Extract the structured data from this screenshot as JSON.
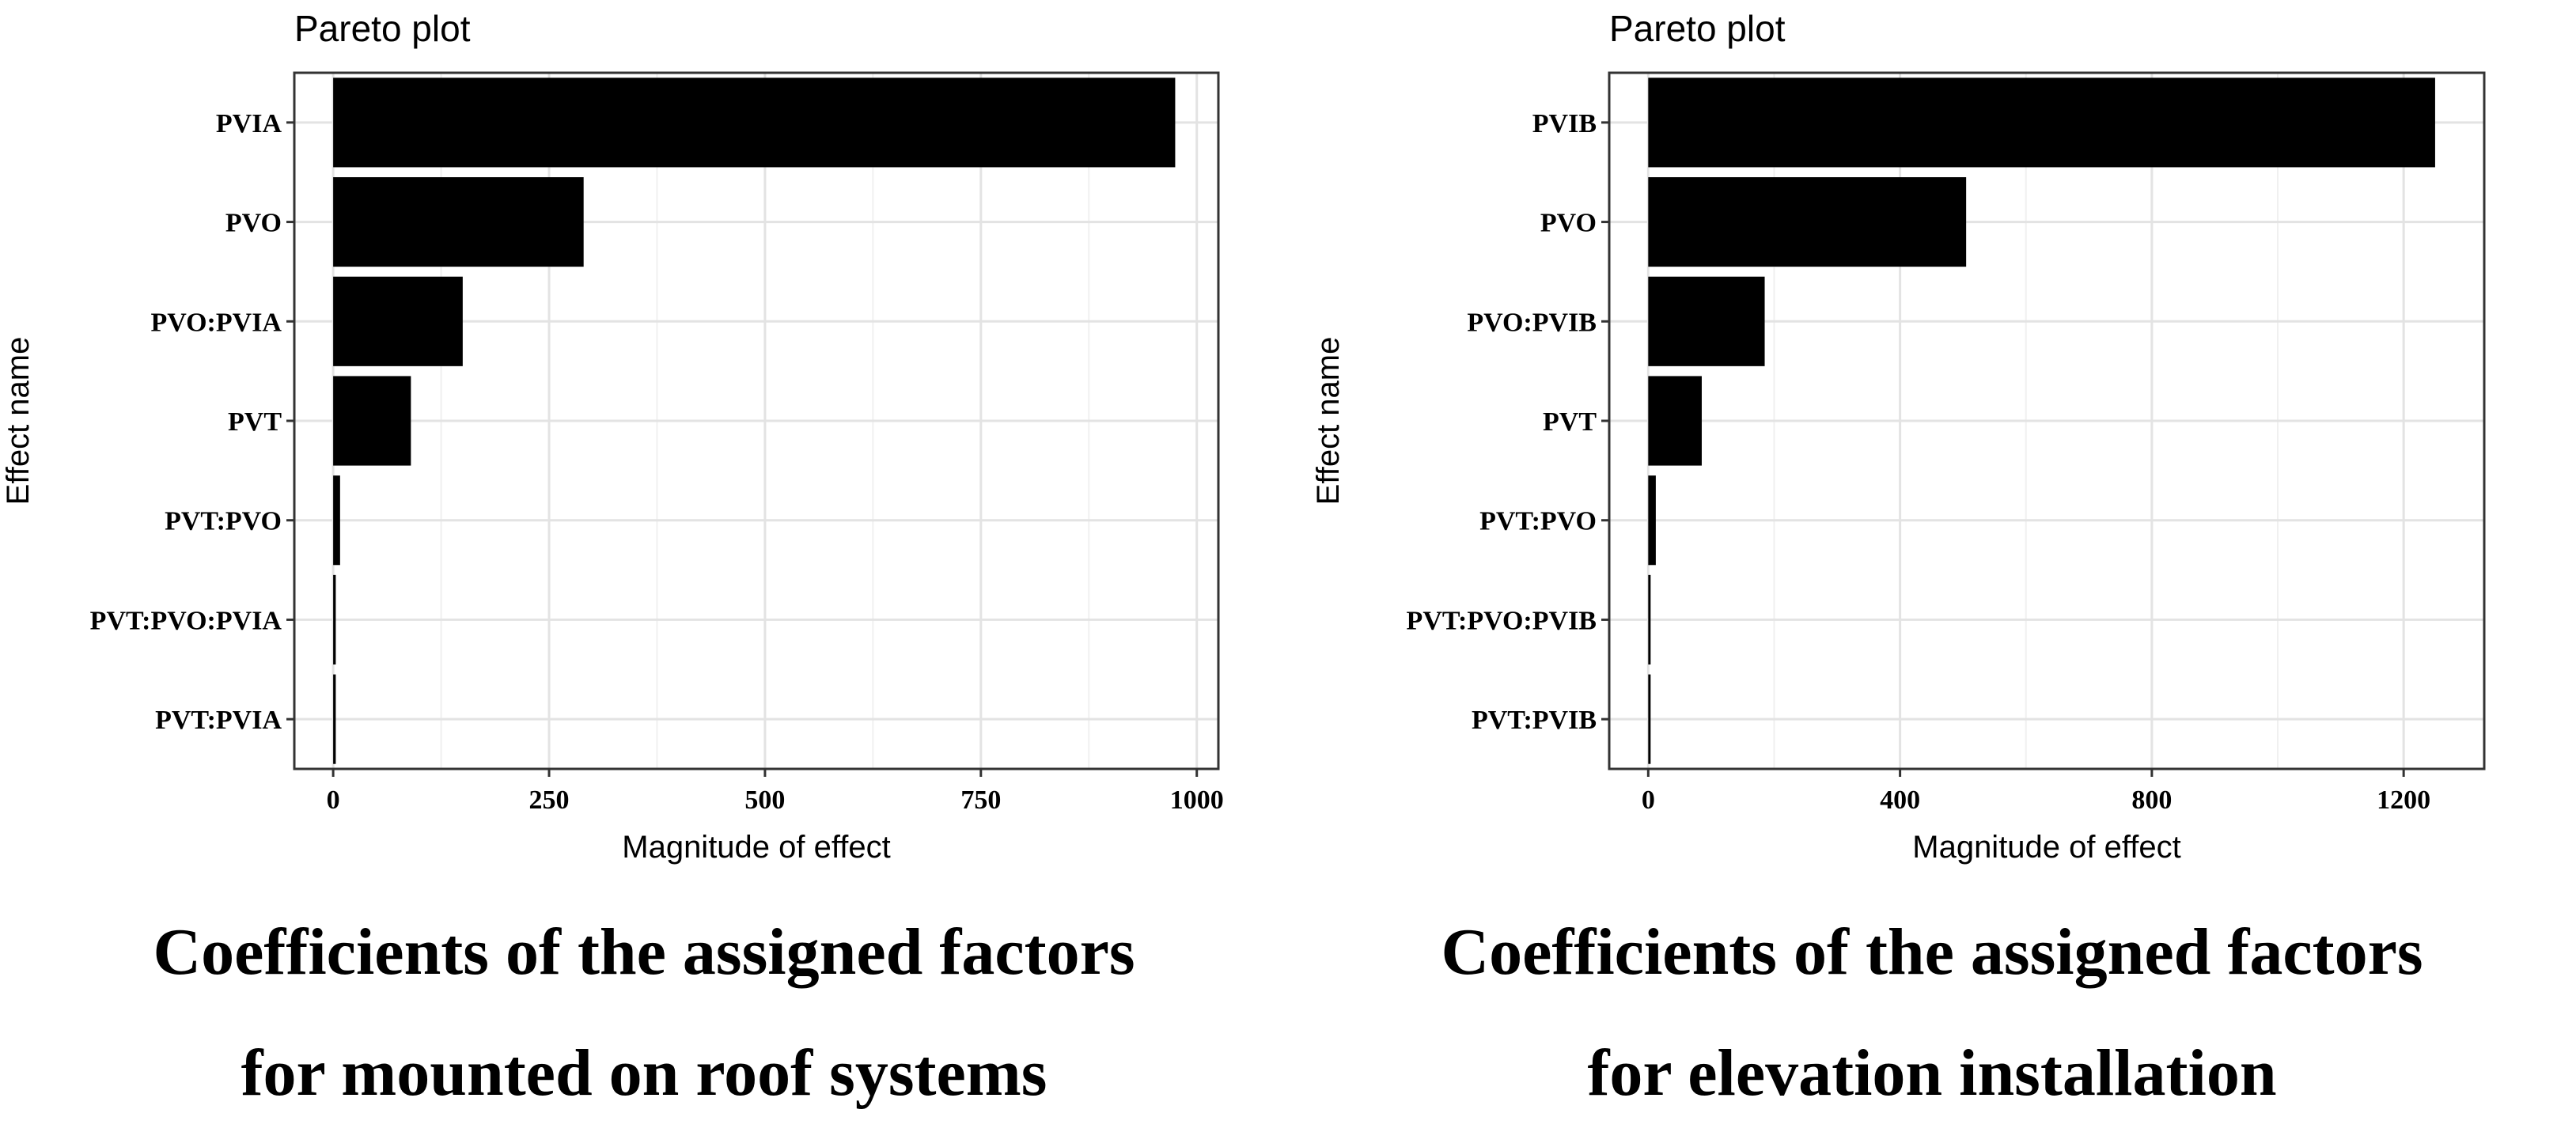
{
  "chart_data": [
    {
      "type": "bar",
      "orientation": "horizontal",
      "title": "Pareto plot",
      "xlabel": "Magnitude of effect",
      "ylabel": "Effect name",
      "categories": [
        "PVIA",
        "PVO",
        "PVO:PVIA",
        "PVT",
        "PVT:PVO",
        "PVT:PVO:PVIA",
        "PVT:PVIA"
      ],
      "values": [
        975,
        290,
        150,
        90,
        8,
        3,
        3
      ],
      "xlim": [
        -45,
        1025
      ],
      "xticks": [
        0,
        250,
        500,
        750,
        1000
      ],
      "grid": true,
      "caption": [
        "Coefficients of the assigned factors",
        "for mounted on roof systems"
      ]
    },
    {
      "type": "bar",
      "orientation": "horizontal",
      "title": "Pareto plot",
      "xlabel": "Magnitude of effect",
      "ylabel": "Effect name",
      "categories": [
        "PVIB",
        "PVO",
        "PVO:PVIB",
        "PVT",
        "PVT:PVO",
        "PVT:PVO:PVIB",
        "PVT:PVIB"
      ],
      "values": [
        1250,
        505,
        185,
        85,
        12,
        3,
        3
      ],
      "xlim": [
        -62,
        1328
      ],
      "xticks": [
        0,
        400,
        800,
        1200
      ],
      "grid": true,
      "caption": [
        "Coefficients of the assigned factors",
        "for elevation installation"
      ]
    }
  ]
}
